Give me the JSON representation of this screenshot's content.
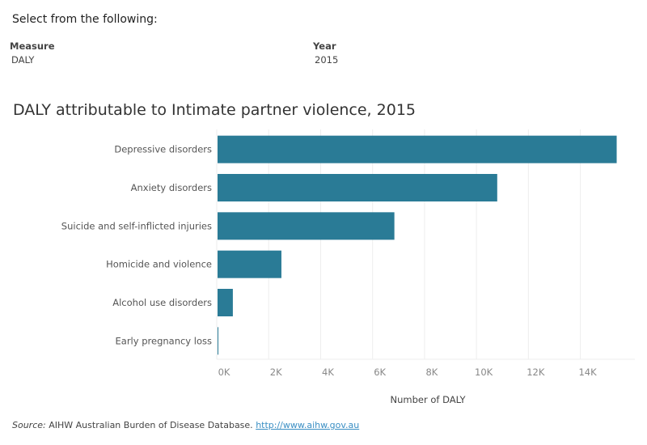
{
  "intro": "Select from the following:",
  "filters": [
    {
      "label": "Measure",
      "value": "DALY"
    },
    {
      "label": "Year",
      "value": "2015"
    }
  ],
  "footer": {
    "source_label": "Source:",
    "source_text": "AIHW Australian Burden of Disease Database.",
    "link": "http://www.aihw.gov.au"
  },
  "chart_data": {
    "type": "bar",
    "orientation": "horizontal",
    "title": "DALY attributable to Intimate partner violence, 2015",
    "xlabel": "Number of DALY",
    "ylabel": "",
    "categories": [
      "Depressive disorders",
      "Anxiety disorders",
      "Suicide and self-inflicted injuries",
      "Homicide and violence",
      "Alcohol use disorders",
      "Early pregnancy loss"
    ],
    "values": [
      15400,
      10800,
      6840,
      2490,
      620,
      30
    ],
    "xlim": [
      0,
      16100
    ],
    "xticks": [
      0,
      2000,
      4000,
      6000,
      8000,
      10000,
      12000,
      14000
    ],
    "xtick_labels": [
      "0K",
      "2K",
      "4K",
      "6K",
      "8K",
      "10K",
      "12K",
      "14K"
    ],
    "grid": "vertical",
    "bar_color": "#2a7b96",
    "legend": "none"
  }
}
